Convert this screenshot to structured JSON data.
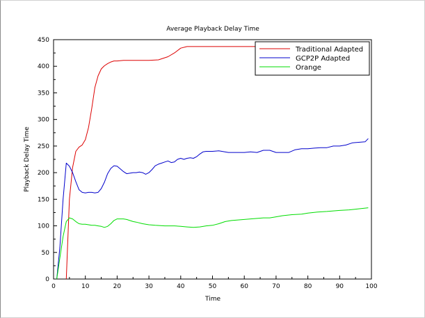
{
  "chart_data": {
    "type": "line",
    "title": "Average Playback Delay Time",
    "xlabel": "Time",
    "ylabel": "Playback Delay Time",
    "xlim": [
      0,
      100
    ],
    "ylim": [
      0,
      450
    ],
    "xticks": [
      "0",
      "10",
      "20",
      "30",
      "40",
      "50",
      "60",
      "70",
      "80",
      "90",
      "100"
    ],
    "yticks": [
      "0",
      "50",
      "100",
      "150",
      "200",
      "250",
      "300",
      "350",
      "400",
      "450"
    ],
    "grid": false,
    "legend_position": "top-right",
    "series": [
      {
        "name": "Traditional Adapted",
        "color": "#dd0000",
        "x": [
          4,
          5,
          6,
          7,
          8,
          9,
          10,
          11,
          12,
          13,
          14,
          15,
          16,
          17,
          18,
          19,
          20,
          22,
          25,
          30,
          33,
          36,
          38,
          40,
          42,
          45,
          50,
          60,
          70,
          80,
          90,
          99
        ],
        "y": [
          0,
          150,
          210,
          240,
          248,
          252,
          262,
          285,
          320,
          360,
          382,
          395,
          401,
          405,
          408,
          410,
          410,
          411,
          411,
          411,
          412,
          418,
          425,
          434,
          437,
          437,
          437,
          437,
          437,
          437,
          437,
          437
        ]
      },
      {
        "name": "GCP2P Adapted",
        "color": "#0000cc",
        "x": [
          1,
          2,
          3,
          4,
          5,
          6,
          7,
          8,
          9,
          10,
          11,
          12,
          13,
          14,
          15,
          16,
          17,
          18,
          19,
          20,
          21,
          22,
          23,
          24,
          25,
          26,
          27,
          28,
          29,
          30,
          31,
          32,
          33,
          34,
          35,
          36,
          37,
          38,
          39,
          40,
          41,
          42,
          43,
          44,
          45,
          46,
          47,
          48,
          50,
          52,
          55,
          58,
          60,
          62,
          64,
          66,
          68,
          70,
          72,
          74,
          76,
          78,
          80,
          82,
          84,
          86,
          88,
          90,
          92,
          94,
          96,
          98,
          99
        ],
        "y": [
          0,
          60,
          150,
          218,
          212,
          200,
          183,
          168,
          163,
          162,
          163,
          163,
          162,
          163,
          170,
          182,
          198,
          208,
          213,
          212,
          207,
          202,
          198,
          199,
          200,
          200,
          201,
          200,
          197,
          200,
          206,
          213,
          216,
          218,
          220,
          222,
          219,
          220,
          225,
          227,
          225,
          227,
          228,
          227,
          230,
          235,
          239,
          240,
          240,
          241,
          238,
          238,
          238,
          239,
          238,
          242,
          242,
          238,
          238,
          238,
          243,
          245,
          245,
          246,
          247,
          247,
          250,
          250,
          252,
          256,
          257,
          258,
          264
        ]
      },
      {
        "name": "Orange",
        "color": "#00dd00",
        "x": [
          1,
          2,
          3,
          4,
          5,
          6,
          7,
          8,
          9,
          10,
          11,
          12,
          13,
          14,
          15,
          16,
          17,
          18,
          19,
          20,
          21,
          22,
          23,
          24,
          25,
          26,
          28,
          30,
          32,
          35,
          38,
          40,
          42,
          44,
          46,
          48,
          50,
          52,
          54,
          56,
          58,
          60,
          62,
          64,
          66,
          68,
          70,
          72,
          75,
          78,
          80,
          83,
          86,
          90,
          93,
          96,
          99
        ],
        "y": [
          0,
          40,
          80,
          108,
          115,
          113,
          108,
          104,
          103,
          103,
          102,
          101,
          101,
          100,
          99,
          97,
          99,
          104,
          110,
          113,
          113,
          113,
          112,
          110,
          108,
          107,
          104,
          102,
          101,
          100,
          100,
          99,
          98,
          97,
          98,
          100,
          101,
          104,
          108,
          110,
          111,
          112,
          113,
          114,
          115,
          115,
          117,
          119,
          121,
          122,
          124,
          126,
          127,
          129,
          130,
          132,
          134
        ]
      }
    ]
  }
}
